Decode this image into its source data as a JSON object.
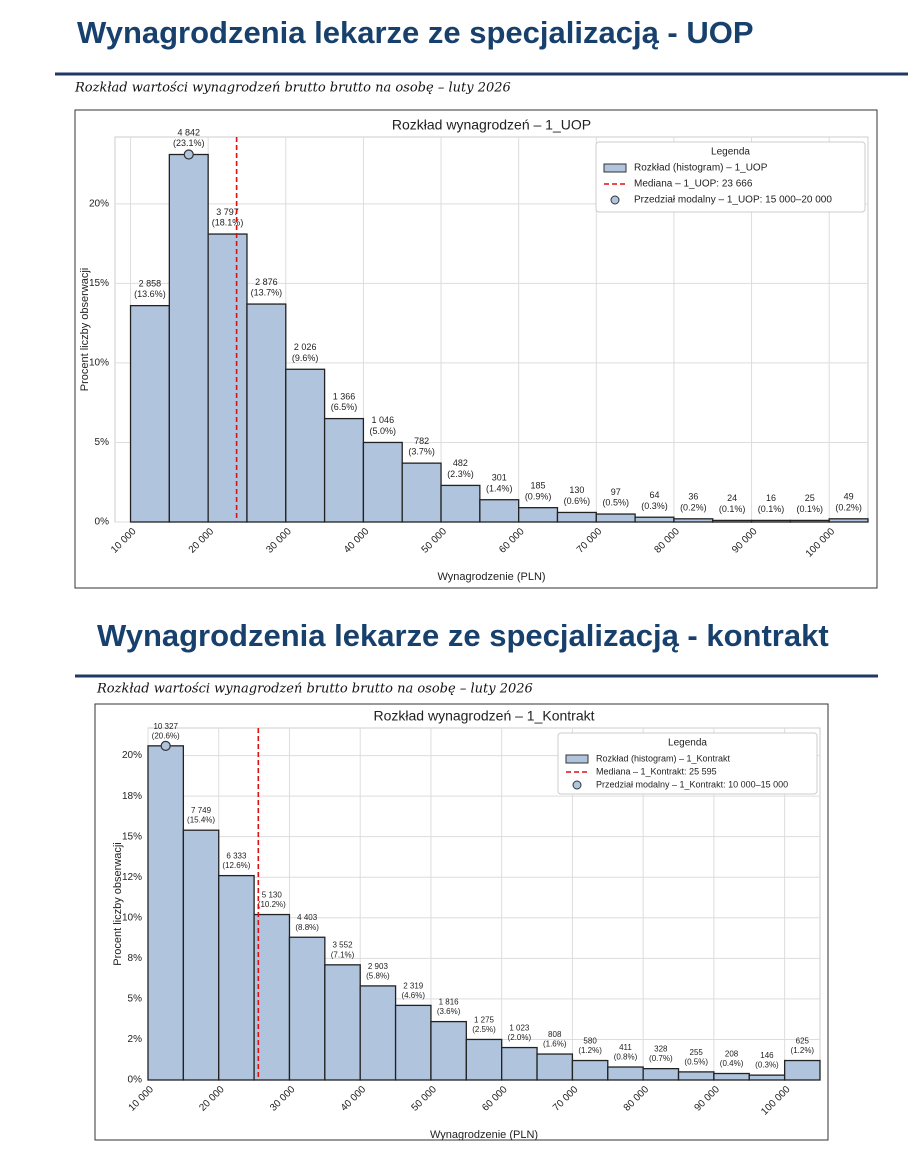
{
  "sections": [
    {
      "heading": "Wynagrodzenia lekarze ze specjalizacją  - UOP",
      "subheading": "Rozkład wartości wynagrodzeń brutto brutto na osobę – luty 2026"
    },
    {
      "heading": "Wynagrodzenia lekarze ze specjalizacją  - kontrakt",
      "subheading": "Rozkład wartości wynagrodzeń brutto brutto na osobę – luty 2026"
    }
  ],
  "chart_data": [
    {
      "type": "histogram",
      "title": "Rozkład wynagrodzeń – 1_UOP",
      "x_label": "Wynagrodzenie (PLN)",
      "y_label": "Procent liczby obserwacji",
      "bins": [
        10000,
        15000,
        20000,
        25000,
        30000,
        35000,
        40000,
        45000,
        50000,
        55000,
        60000,
        65000,
        70000,
        75000,
        80000,
        85000,
        90000,
        95000,
        100000,
        105000
      ],
      "values": [
        13.6,
        23.1,
        18.1,
        13.7,
        9.6,
        6.5,
        5.0,
        3.7,
        2.3,
        1.4,
        0.9,
        0.6,
        0.5,
        0.3,
        0.2,
        0.1,
        0.1,
        0.1,
        0.2
      ],
      "value_labels": [
        "(13.6%)",
        "(23.1%)",
        "(18.1%)",
        "(13.7%)",
        "(9.6%)",
        "(6.5%)",
        "(5.0%)",
        "(3.7%)",
        "(2.3%)",
        "(1.4%)",
        "(0.9%)",
        "(0.6%)",
        "(0.5%)",
        "(0.3%)",
        "(0.2%)",
        "(0.1%)",
        "(0.1%)",
        "(0.1%)",
        "(0.2%)"
      ],
      "count_labels": [
        "2 858",
        "4 842",
        "3 797",
        "2 876",
        "2 026",
        "1 366",
        "1 046",
        "782",
        "482",
        "301",
        "185",
        "130",
        "97",
        "64",
        "36",
        "24",
        "16",
        "25",
        "49"
      ],
      "color": "#b0c4de",
      "median": 23666,
      "median_color": "#dd1111",
      "legend": "upper right",
      "legend_title": "Legenda",
      "legend_labels": [
        "Rozkład (histogram) – 1_UOP",
        "Mediana – 1_UOP: 23 666",
        "Przedział modalny – 1_UOP: 15 000–20 000"
      ],
      "xlim": [
        8000,
        105000
      ],
      "ylim": [
        0,
        24.2
      ],
      "xticks": [
        {
          "value": 10000,
          "label": "10 000"
        },
        {
          "value": 20000,
          "label": "20 000"
        },
        {
          "value": 30000,
          "label": "30 000"
        },
        {
          "value": 40000,
          "label": "40 000"
        },
        {
          "value": 50000,
          "label": "50 000"
        },
        {
          "value": 60000,
          "label": "60 000"
        },
        {
          "value": 70000,
          "label": "70 000"
        },
        {
          "value": 80000,
          "label": "80 000"
        },
        {
          "value": 90000,
          "label": "90 000"
        },
        {
          "value": 100000,
          "label": "100 000"
        }
      ],
      "yticks": [
        {
          "value": 0,
          "label": "0%"
        },
        {
          "value": 5,
          "label": "5%"
        },
        {
          "value": 10,
          "label": "10%"
        },
        {
          "value": 15,
          "label": "15%"
        },
        {
          "value": 20,
          "label": "20%"
        }
      ],
      "grid": true
    },
    {
      "type": "histogram",
      "title": "Rozkład wynagrodzeń – 1_Kontrakt",
      "x_label": "Wynagrodzenie (PLN)",
      "y_label": "Procent liczby obserwacji",
      "bins": [
        10000,
        15000,
        20000,
        25000,
        30000,
        35000,
        40000,
        45000,
        50000,
        55000,
        60000,
        65000,
        70000,
        75000,
        80000,
        85000,
        90000,
        95000,
        100000,
        105000
      ],
      "values": [
        20.6,
        15.4,
        12.6,
        10.2,
        8.8,
        7.1,
        5.8,
        4.6,
        3.6,
        2.5,
        2.0,
        1.6,
        1.2,
        0.8,
        0.7,
        0.5,
        0.4,
        0.3,
        1.2
      ],
      "value_labels": [
        "(20.6%)",
        "(15.4%)",
        "(12.6%)",
        "(10.2%)",
        "(8.8%)",
        "(7.1%)",
        "(5.8%)",
        "(4.6%)",
        "(3.6%)",
        "(2.5%)",
        "(2.0%)",
        "(1.6%)",
        "(1.2%)",
        "(0.8%)",
        "(0.7%)",
        "(0.5%)",
        "(0.4%)",
        "(0.3%)",
        "(1.2%)"
      ],
      "count_labels": [
        "10 327",
        "7 749",
        "6 333",
        "5 130",
        "4 403",
        "3 552",
        "2 903",
        "2 319",
        "1 816",
        "1 275",
        "1 023",
        "808",
        "580",
        "411",
        "328",
        "255",
        "208",
        "146",
        "625"
      ],
      "color": "#b0c4de",
      "median": 25595,
      "median_color": "#dd1111",
      "legend": "upper right",
      "legend_title": "Legenda",
      "legend_labels": [
        "Rozkład (histogram) – 1_Kontrakt",
        "Mediana – 1_Kontrakt: 25 595",
        "Przedział modalny – 1_Kontrakt: 10 000–15 000"
      ],
      "xlim": [
        10000,
        105000
      ],
      "ylim": [
        0,
        21.7
      ],
      "xticks": [
        {
          "value": 10000,
          "label": "10 000"
        },
        {
          "value": 20000,
          "label": "20 000"
        },
        {
          "value": 30000,
          "label": "30 000"
        },
        {
          "value": 40000,
          "label": "40 000"
        },
        {
          "value": 50000,
          "label": "50 000"
        },
        {
          "value": 60000,
          "label": "60 000"
        },
        {
          "value": 70000,
          "label": "70 000"
        },
        {
          "value": 80000,
          "label": "80 000"
        },
        {
          "value": 90000,
          "label": "90 000"
        },
        {
          "value": 100000,
          "label": "100 000"
        }
      ],
      "yticks": [
        {
          "value": 0,
          "label": "0%"
        },
        {
          "value": 2.5,
          "label": "2%"
        },
        {
          "value": 5,
          "label": "5%"
        },
        {
          "value": 7.5,
          "label": "8%"
        },
        {
          "value": 10,
          "label": "10%"
        },
        {
          "value": 12.5,
          "label": "12%"
        },
        {
          "value": 15,
          "label": "15%"
        },
        {
          "value": 17.5,
          "label": "18%"
        },
        {
          "value": 20,
          "label": "20%"
        }
      ],
      "grid": true
    }
  ]
}
